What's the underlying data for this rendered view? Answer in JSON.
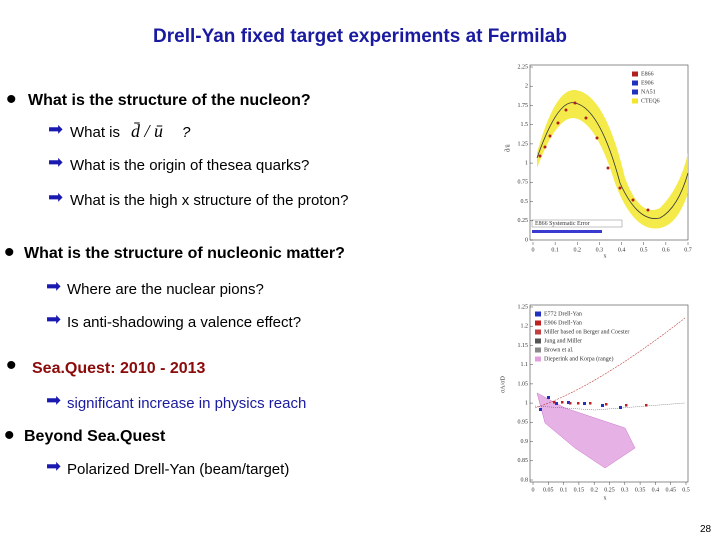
{
  "title": "Drell-Yan fixed target experiments at Fermilab",
  "bullets": [
    {
      "text": "What is the structure of the nucleon?",
      "items": [
        {
          "prefix": "What is",
          "formula": "d̄ / ū",
          "suffix": "?"
        },
        {
          "text": "What is the origin of thesea quarks?"
        },
        {
          "text": "What is the high x structure of the proton?"
        }
      ]
    },
    {
      "text": "What is the structure of nucleonic matter?",
      "items": [
        {
          "text": "Where are the nuclear pions?"
        },
        {
          "text": "Is anti-shadowing a valence effect?"
        }
      ]
    },
    {
      "text": "Sea.Quest: 2010 - 2013",
      "items": [
        {
          "text": "significant increase in physics reach"
        }
      ]
    },
    {
      "text": "Beyond Sea.Quest",
      "items": [
        {
          "text": "Polarized Drell-Yan (beam/target)"
        }
      ]
    }
  ],
  "plot1": {
    "ylabel": "d̄/ū",
    "xlabel": "x",
    "yticks": [
      {
        "value": 0,
        "label": "0"
      },
      0.25,
      0.5,
      0.75,
      1,
      1.25,
      1.5,
      1.75,
      2,
      2.25
    ],
    "xticks": [
      0,
      0.1,
      0.2,
      0.3,
      0.4,
      0.5,
      0.6,
      0.7
    ],
    "legend": [
      "E866",
      "E906",
      "NA51",
      "CTEQ6"
    ],
    "annotation": "E866 Systematic Error"
  },
  "plot2": {
    "ylabel": "σA/σD",
    "xlabel": "x",
    "yticks": [
      0.8,
      0.85,
      0.9,
      0.95,
      1,
      1.05,
      1.1,
      1.15,
      1.2,
      1.25
    ],
    "xticks": [
      0,
      0.05,
      0.1,
      0.15,
      0.2,
      0.25,
      0.3,
      0.35,
      0.4,
      0.45,
      0.5
    ],
    "legend": [
      "E772 Drell-Yan",
      "E906 Drell-Yan",
      "Miller based on Berger and Coester",
      "Jung and Miller",
      "Brown et al.",
      "Dieperink and Korpa (range)"
    ]
  },
  "page_number": "28"
}
